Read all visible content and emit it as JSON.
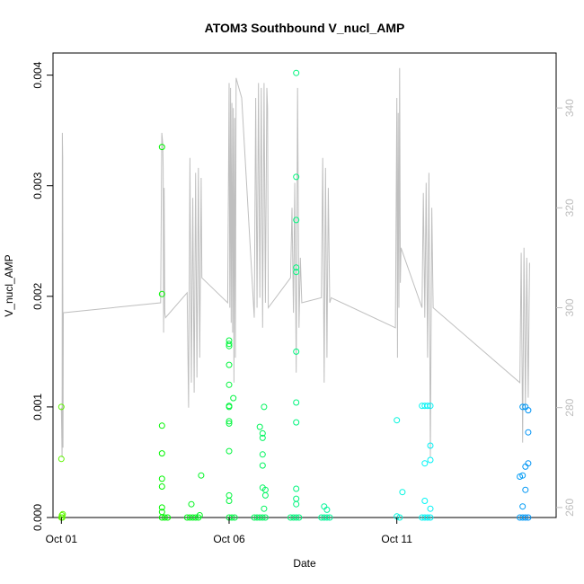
{
  "chart_data": {
    "type": "scatter",
    "title": "ATOM3 Southbound V_nucl_AMP",
    "xlabel": "Date",
    "ylabel": "V_nucl_AMP",
    "xlim": [
      "2015-09-30T18:00",
      "2015-10-15T18:00"
    ],
    "ylim": [
      0,
      0.0042
    ],
    "y2lim": [
      258,
      351
    ],
    "x_ticks": [
      {
        "at": "2015-10-01T00:00",
        "label": "Oct 01"
      },
      {
        "at": "2015-10-06T00:00",
        "label": "Oct 06"
      },
      {
        "at": "2015-10-11T00:00",
        "label": "Oct 11"
      }
    ],
    "y_ticks": [
      {
        "value": 0,
        "label": "0.000"
      },
      {
        "value": 0.001,
        "label": "0.001"
      },
      {
        "value": 0.002,
        "label": "0.002"
      },
      {
        "value": 0.003,
        "label": "0.003"
      },
      {
        "value": 0.004,
        "label": "0.004"
      }
    ],
    "y2_ticks": [
      {
        "value": 260,
        "label": "260"
      },
      {
        "value": 280,
        "label": "280"
      },
      {
        "value": 300,
        "label": "300"
      },
      {
        "value": 320,
        "label": "320"
      },
      {
        "value": 340,
        "label": "340"
      }
    ],
    "grid": false,
    "series": [
      {
        "kind": "points",
        "points": [
          [
            "2015-10-01T00:00",
            0.0
          ],
          [
            "2015-10-01T00:20",
            2e-05
          ],
          [
            "2015-10-01T00:40",
            0.0
          ],
          [
            "2015-10-01T01:00",
            3e-05
          ],
          [
            "2015-10-01T00:00",
            0.001
          ],
          [
            "2015-10-01T00:00",
            0.00053
          ],
          [
            "2015-10-04T00:00",
            0.00335
          ],
          [
            "2015-10-04T00:00",
            0.00202
          ],
          [
            "2015-10-04T00:00",
            0.00083
          ],
          [
            "2015-10-04T00:00",
            0.00058
          ],
          [
            "2015-10-04T00:00",
            0.00035
          ],
          [
            "2015-10-04T00:00",
            0.00028
          ],
          [
            "2015-10-04T00:00",
            9e-05
          ],
          [
            "2015-10-04T00:00",
            5e-05
          ],
          [
            "2015-10-04T00:00",
            0.0
          ],
          [
            "2015-10-04T02:00",
            0.0
          ],
          [
            "2015-10-04T04:00",
            0.0
          ],
          [
            "2015-10-04T18:00",
            0.0
          ],
          [
            "2015-10-04T20:00",
            0.0
          ],
          [
            "2015-10-04T22:00",
            0.0
          ],
          [
            "2015-10-05T00:00",
            0.0
          ],
          [
            "2015-10-05T02:00",
            0.0
          ],
          [
            "2015-10-04T21:00",
            0.00012
          ],
          [
            "2015-10-05T04:00",
            0.00038
          ],
          [
            "2015-10-05T03:00",
            2e-05
          ],
          [
            "2015-10-06T00:00",
            0.0016
          ],
          [
            "2015-10-06T00:00",
            0.00157
          ],
          [
            "2015-10-06T00:00",
            0.00155
          ],
          [
            "2015-10-06T00:00",
            0.00138
          ],
          [
            "2015-10-06T00:00",
            0.0012
          ],
          [
            "2015-10-06T00:00",
            0.00101
          ],
          [
            "2015-10-06T00:00",
            0.001
          ],
          [
            "2015-10-06T00:00",
            0.00087
          ],
          [
            "2015-10-06T00:00",
            0.00085
          ],
          [
            "2015-10-06T00:00",
            0.0006
          ],
          [
            "2015-10-06T00:00",
            0.0002
          ],
          [
            "2015-10-06T00:00",
            0.00015
          ],
          [
            "2015-10-06T00:00",
            0.0
          ],
          [
            "2015-10-06T02:00",
            0.0
          ],
          [
            "2015-10-06T04:00",
            0.0
          ],
          [
            "2015-10-06T03:00",
            0.00108
          ],
          [
            "2015-10-06T18:00",
            0.0
          ],
          [
            "2015-10-06T20:00",
            0.0
          ],
          [
            "2015-10-06T22:00",
            0.0
          ],
          [
            "2015-10-07T00:00",
            0.0
          ],
          [
            "2015-10-07T02:00",
            0.0
          ],
          [
            "2015-10-06T22:00",
            0.00082
          ],
          [
            "2015-10-07T00:00",
            0.00076
          ],
          [
            "2015-10-07T00:00",
            0.00072
          ],
          [
            "2015-10-07T00:00",
            0.00057
          ],
          [
            "2015-10-07T00:00",
            0.00047
          ],
          [
            "2015-10-07T00:00",
            0.00027
          ],
          [
            "2015-10-07T02:00",
            0.00025
          ],
          [
            "2015-10-07T01:00",
            0.001
          ],
          [
            "2015-10-07T02:00",
            0.0002
          ],
          [
            "2015-10-07T01:00",
            8e-05
          ],
          [
            "2015-10-08T00:00",
            0.00402
          ],
          [
            "2015-10-08T00:00",
            0.00308
          ],
          [
            "2015-10-08T00:00",
            0.00269
          ],
          [
            "2015-10-08T00:00",
            0.00226
          ],
          [
            "2015-10-08T00:00",
            0.00222
          ],
          [
            "2015-10-08T00:00",
            0.0015
          ],
          [
            "2015-10-08T00:00",
            0.00104
          ],
          [
            "2015-10-08T00:00",
            0.00086
          ],
          [
            "2015-10-08T00:00",
            0.00026
          ],
          [
            "2015-10-08T00:00",
            0.00017
          ],
          [
            "2015-10-08T00:00",
            0.00012
          ],
          [
            "2015-10-08T00:00",
            0.0
          ],
          [
            "2015-10-07T20:00",
            0.0
          ],
          [
            "2015-10-07T22:00",
            0.0
          ],
          [
            "2015-10-08T02:00",
            0.0
          ],
          [
            "2015-10-08T18:00",
            0.0
          ],
          [
            "2015-10-08T20:00",
            0.0
          ],
          [
            "2015-10-08T22:00",
            0.0
          ],
          [
            "2015-10-09T00:00",
            0.0
          ],
          [
            "2015-10-08T20:00",
            0.0001
          ],
          [
            "2015-10-08T22:00",
            7e-05
          ],
          [
            "2015-10-11T00:00",
            0.00088
          ],
          [
            "2015-10-11T04:00",
            0.00023
          ],
          [
            "2015-10-11T00:00",
            1e-05
          ],
          [
            "2015-10-11T02:00",
            0.0
          ],
          [
            "2015-10-11T18:00",
            0.00101
          ],
          [
            "2015-10-11T20:00",
            0.00101
          ],
          [
            "2015-10-11T22:00",
            0.00101
          ],
          [
            "2015-10-12T00:00",
            0.00101
          ],
          [
            "2015-10-11T20:00",
            0.00049
          ],
          [
            "2015-10-12T00:00",
            0.00065
          ],
          [
            "2015-10-12T00:00",
            0.00052
          ],
          [
            "2015-10-11T20:00",
            0.00015
          ],
          [
            "2015-10-12T00:00",
            8e-05
          ],
          [
            "2015-10-11T18:00",
            0.0
          ],
          [
            "2015-10-11T20:00",
            0.0
          ],
          [
            "2015-10-11T22:00",
            0.0
          ],
          [
            "2015-10-12T00:00",
            0.0
          ],
          [
            "2015-10-14T18:00",
            0.001
          ],
          [
            "2015-10-14T20:00",
            0.001
          ],
          [
            "2015-10-14T22:00",
            0.00097
          ],
          [
            "2015-10-14T22:00",
            0.00077
          ],
          [
            "2015-10-14T22:00",
            0.00049
          ],
          [
            "2015-10-14T20:00",
            0.00046
          ],
          [
            "2015-10-14T16:00",
            0.00037
          ],
          [
            "2015-10-14T18:00",
            0.00038
          ],
          [
            "2015-10-14T20:00",
            0.00025
          ],
          [
            "2015-10-14T18:00",
            0.0001
          ],
          [
            "2015-10-14T16:00",
            0.0
          ],
          [
            "2015-10-14T18:00",
            0.0
          ],
          [
            "2015-10-14T20:00",
            0.0
          ],
          [
            "2015-10-14T22:00",
            0.0
          ]
        ]
      },
      {
        "kind": "secondary-line",
        "color": "#bfbfbf",
        "points": [
          [
            "2015-10-01T00:00",
            280
          ],
          [
            "2015-10-01T00:30",
            270
          ],
          [
            "2015-10-01T00:40",
            335
          ],
          [
            "2015-10-01T00:55",
            330
          ],
          [
            "2015-10-01T01:10",
            272
          ],
          [
            "2015-10-01T01:25",
            299
          ],
          [
            "2015-10-03T23:00",
            301
          ],
          [
            "2015-10-03T23:50",
            335
          ],
          [
            "2015-10-04T00:30",
            333
          ],
          [
            "2015-10-04T00:50",
            328
          ],
          [
            "2015-10-04T01:10",
            295
          ],
          [
            "2015-10-04T01:30",
            324
          ],
          [
            "2015-10-04T02:00",
            299
          ],
          [
            "2015-10-04T02:30",
            298
          ],
          [
            "2015-10-04T18:00",
            303
          ],
          [
            "2015-10-04T19:00",
            280
          ],
          [
            "2015-10-04T20:00",
            330
          ],
          [
            "2015-10-04T21:00",
            285
          ],
          [
            "2015-10-04T22:00",
            322
          ],
          [
            "2015-10-04T23:00",
            283
          ],
          [
            "2015-10-05T00:00",
            327
          ],
          [
            "2015-10-05T01:00",
            286
          ],
          [
            "2015-10-05T02:00",
            328
          ],
          [
            "2015-10-05T03:00",
            290
          ],
          [
            "2015-10-05T04:00",
            326
          ],
          [
            "2015-10-05T04:30",
            306
          ],
          [
            "2015-10-05T23:00",
            301
          ],
          [
            "2015-10-06T00:00",
            345
          ],
          [
            "2015-10-06T00:30",
            300
          ],
          [
            "2015-10-06T01:00",
            344
          ],
          [
            "2015-10-06T01:30",
            297
          ],
          [
            "2015-10-06T02:00",
            341
          ],
          [
            "2015-10-06T02:30",
            295
          ],
          [
            "2015-10-06T03:00",
            340
          ],
          [
            "2015-10-06T03:30",
            285
          ],
          [
            "2015-10-06T04:00",
            338
          ],
          [
            "2015-10-06T04:30",
            290
          ],
          [
            "2015-10-06T05:00",
            346
          ],
          [
            "2015-10-06T06:00",
            345
          ],
          [
            "2015-10-06T09:00",
            342
          ],
          [
            "2015-10-06T18:00",
            298
          ],
          [
            "2015-10-06T19:00",
            342
          ],
          [
            "2015-10-06T20:00",
            300
          ],
          [
            "2015-10-06T21:00",
            345
          ],
          [
            "2015-10-06T22:00",
            302
          ],
          [
            "2015-10-06T23:00",
            344
          ],
          [
            "2015-10-07T00:00",
            296
          ],
          [
            "2015-10-07T01:00",
            345
          ],
          [
            "2015-10-07T02:00",
            301
          ],
          [
            "2015-10-07T03:00",
            344
          ],
          [
            "2015-10-07T03:30",
            340
          ],
          [
            "2015-10-07T04:00",
            300
          ],
          [
            "2015-10-07T20:00",
            306
          ],
          [
            "2015-10-07T21:00",
            320
          ],
          [
            "2015-10-07T22:00",
            299
          ],
          [
            "2015-10-07T23:00",
            325
          ],
          [
            "2015-10-08T00:00",
            287
          ],
          [
            "2015-10-08T01:00",
            344
          ],
          [
            "2015-10-08T02:00",
            296
          ],
          [
            "2015-10-08T03:00",
            310
          ],
          [
            "2015-10-08T04:00",
            301
          ],
          [
            "2015-10-08T18:00",
            302
          ],
          [
            "2015-10-08T19:00",
            330
          ],
          [
            "2015-10-08T20:00",
            285
          ],
          [
            "2015-10-08T21:00",
            328
          ],
          [
            "2015-10-08T22:00",
            290
          ],
          [
            "2015-10-08T23:00",
            324
          ],
          [
            "2015-10-09T00:00",
            301
          ],
          [
            "2015-10-09T01:00",
            302
          ],
          [
            "2015-10-10T23:00",
            296
          ],
          [
            "2015-10-11T00:00",
            342
          ],
          [
            "2015-10-11T00:30",
            290
          ],
          [
            "2015-10-11T01:00",
            339
          ],
          [
            "2015-10-11T01:30",
            300
          ],
          [
            "2015-10-11T02:00",
            348
          ],
          [
            "2015-10-11T02:30",
            305
          ],
          [
            "2015-10-11T03:00",
            312
          ],
          [
            "2015-10-11T18:00",
            300
          ],
          [
            "2015-10-11T19:00",
            323
          ],
          [
            "2015-10-11T20:00",
            298
          ],
          [
            "2015-10-11T21:00",
            325
          ],
          [
            "2015-10-11T22:00",
            290
          ],
          [
            "2015-10-11T23:00",
            327
          ],
          [
            "2015-10-12T00:00",
            270
          ],
          [
            "2015-10-12T01:00",
            320
          ],
          [
            "2015-10-12T02:00",
            300
          ],
          [
            "2015-10-14T16:00",
            285
          ],
          [
            "2015-10-14T17:00",
            311
          ],
          [
            "2015-10-14T18:00",
            273
          ],
          [
            "2015-10-14T19:00",
            312
          ],
          [
            "2015-10-14T20:00",
            280
          ],
          [
            "2015-10-14T21:00",
            310
          ],
          [
            "2015-10-14T22:00",
            282
          ],
          [
            "2015-10-14T23:00",
            309
          ]
        ]
      }
    ]
  }
}
